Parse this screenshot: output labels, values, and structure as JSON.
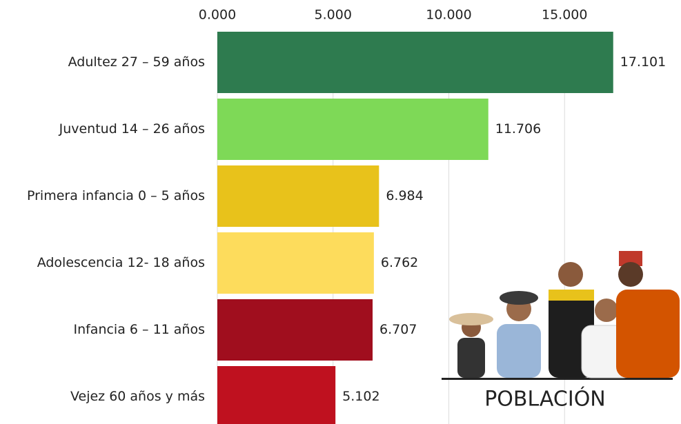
{
  "chart_data": {
    "type": "barh",
    "categories": [
      "Adultez 27 – 59 años",
      "Juventud 14 – 26 años",
      "Primera infancia 0 – 5 años",
      "Adolescencia 12- 18 años",
      "Infancia 6 – 11 años",
      "Vejez 60 años y más"
    ],
    "values": [
      17101,
      11706,
      6984,
      6762,
      6707,
      5102
    ],
    "value_labels": [
      "17.101",
      "11.706",
      "6.984",
      "6.762",
      "6.707",
      "5.102"
    ],
    "colors": [
      "#2e7b4f",
      "#7ed957",
      "#e8c21b",
      "#fddc5c",
      "#a00e1e",
      "#bf111f"
    ],
    "xlim": [
      0,
      20000
    ],
    "xticks": [
      {
        "value": 0,
        "label": "0.000"
      },
      {
        "value": 5000,
        "label": "5.000"
      },
      {
        "value": 10000,
        "label": "10.000"
      },
      {
        "value": 15000,
        "label": "15.000"
      }
    ],
    "grid": true,
    "annotation": "POBLACIÓN"
  }
}
